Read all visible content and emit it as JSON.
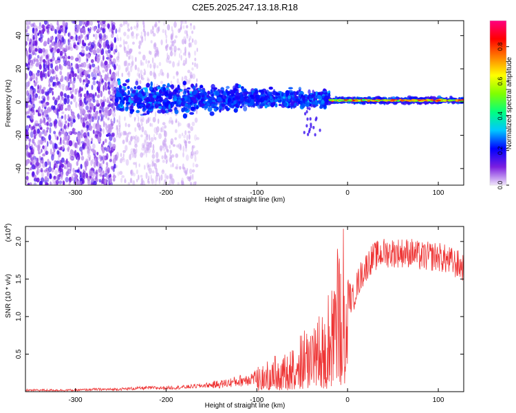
{
  "title": "C2E5.2025.247.13.18.R18",
  "chart_data": [
    {
      "type": "heatmap",
      "title": "C2E5.2025.247.13.18.R18",
      "xlabel": "Height of straight line (km)",
      "ylabel": "Frequency (Hz)",
      "xlim": [
        -355,
        128
      ],
      "ylim": [
        -50,
        49
      ],
      "x_ticks": [
        -300,
        -200,
        -100,
        0,
        100
      ],
      "x_tick_labels": [
        "-300",
        "-200",
        "-100",
        "0",
        "100"
      ],
      "y_ticks": [
        -40,
        -20,
        0,
        20,
        40
      ],
      "y_tick_labels": [
        "-40",
        "-20",
        "0",
        "20",
        "40"
      ],
      "colorbar": {
        "label": "Normalized spectral amplitude",
        "range": [
          0.0,
          0.95
        ],
        "ticks": [
          0.0,
          0.2,
          0.4,
          0.6,
          0.8
        ],
        "tick_labels": [
          "0.0",
          "0.2",
          "0.4",
          "0.6",
          "0.8"
        ],
        "colormap": [
          "#f0e6fa",
          "#7b1fe0",
          "#0000ff",
          "#00c8ff",
          "#00ff80",
          "#80ff00",
          "#ffff00",
          "#ff8000",
          "#ff0000",
          "#ff0080"
        ]
      },
      "description_regions": [
        {
          "x_range": [
            -355,
            -255
          ],
          "freq_spread": 49,
          "amplitude": 0.1
        },
        {
          "x_range": [
            -255,
            -165
          ],
          "freq_spread": 49,
          "amplitude": 0.03
        },
        {
          "x_range": [
            -255,
            -20
          ],
          "freq_center": 3,
          "freq_spread": 10,
          "amplitude": 0.3
        },
        {
          "x_range": [
            -20,
            128
          ],
          "freq_center": 1,
          "freq_spread": 3,
          "amplitude": 0.55
        }
      ]
    },
    {
      "type": "line",
      "xlabel": "Height of straight line (km)",
      "ylabel": "SNR (10 * v/v)",
      "y_multiplier_label": "(x10",
      "y_multiplier_exp": "4",
      "y_multiplier_close": ")",
      "xlim": [
        -355,
        128
      ],
      "ylim": [
        0,
        2.2
      ],
      "x_ticks": [
        -300,
        -200,
        -100,
        0,
        100
      ],
      "x_tick_labels": [
        "-300",
        "-200",
        "-100",
        "0",
        "100"
      ],
      "y_ticks": [
        0.5,
        1.0,
        1.5,
        2.0
      ],
      "y_tick_labels": [
        "0.5",
        "1.0",
        "1.5",
        "2.0"
      ],
      "color": "#ee3333",
      "series": [
        {
          "name": "SNR",
          "x": [
            -355,
            -340,
            -320,
            -300,
            -280,
            -260,
            -240,
            -220,
            -200,
            -180,
            -160,
            -140,
            -120,
            -100,
            -90,
            -80,
            -70,
            -60,
            -50,
            -40,
            -30,
            -20,
            -15,
            -10,
            -5,
            0,
            5,
            10,
            15,
            20,
            25,
            30,
            40,
            50,
            60,
            70,
            80,
            90,
            100,
            110,
            120,
            128
          ],
          "values": [
            0.02,
            0.02,
            0.02,
            0.02,
            0.03,
            0.03,
            0.04,
            0.05,
            0.05,
            0.06,
            0.08,
            0.1,
            0.14,
            0.2,
            0.25,
            0.3,
            0.32,
            0.4,
            0.5,
            0.55,
            0.65,
            0.85,
            1.1,
            1.3,
            1.4,
            1.35,
            1.2,
            1.4,
            1.55,
            1.65,
            1.75,
            1.8,
            1.85,
            1.85,
            1.85,
            1.85,
            1.8,
            1.8,
            1.8,
            1.75,
            1.7,
            1.65
          ]
        }
      ]
    }
  ]
}
